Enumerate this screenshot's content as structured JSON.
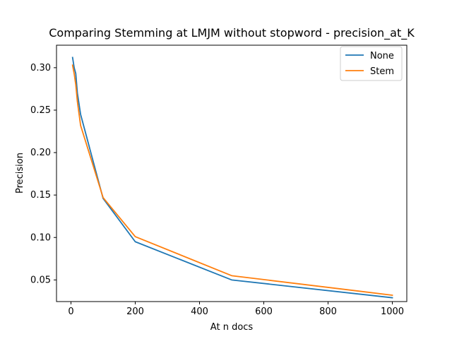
{
  "chart_data": {
    "type": "line",
    "title": "Comparing Stemming at LMJM without stopword - precision_at_K",
    "xlabel": "At n docs",
    "ylabel": "Precision",
    "xlim": [
      -45,
      1045
    ],
    "ylim": [
      0.0245,
      0.3265
    ],
    "xticks": [
      0,
      200,
      400,
      600,
      800,
      1000
    ],
    "xtick_labels": [
      "0",
      "200",
      "400",
      "600",
      "800",
      "1000"
    ],
    "yticks": [
      0.05,
      0.1,
      0.15,
      0.2,
      0.25,
      0.3
    ],
    "ytick_labels": [
      "0.05",
      "0.10",
      "0.15",
      "0.20",
      "0.25",
      "0.30"
    ],
    "grid": false,
    "legend_position": "top-right",
    "series": [
      {
        "name": "None",
        "color": "#1f77b4",
        "x": [
          5,
          10,
          15,
          20,
          30,
          100,
          200,
          500,
          1000
        ],
        "y": [
          0.312,
          0.3,
          0.293,
          0.27,
          0.245,
          0.146,
          0.095,
          0.05,
          0.029
        ]
      },
      {
        "name": "Stem",
        "color": "#ff7f0e",
        "x": [
          5,
          10,
          15,
          20,
          30,
          100,
          200,
          500,
          1000
        ],
        "y": [
          0.303,
          0.293,
          0.28,
          0.26,
          0.232,
          0.147,
          0.101,
          0.055,
          0.032
        ]
      }
    ]
  }
}
